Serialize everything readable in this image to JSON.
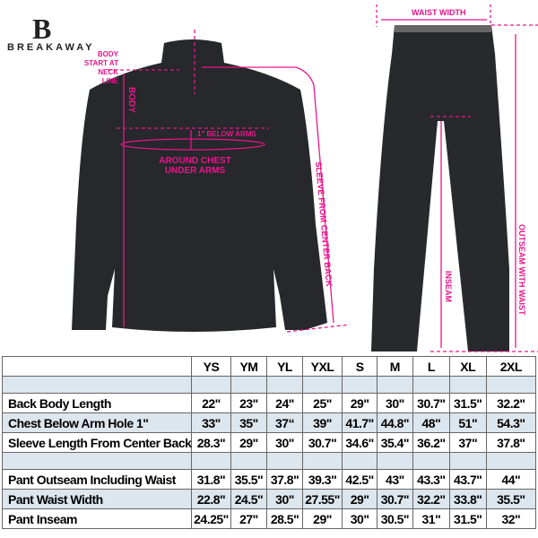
{
  "brand": {
    "logo_letter": "B",
    "name": "BREAKAWAY"
  },
  "colors": {
    "annotation": "#e8168b",
    "garment": "#26282b",
    "row_tint": "#dce6ee"
  },
  "annotations": {
    "body_start": [
      "BODY",
      "START AT",
      "NECK LINE"
    ],
    "body": "BODY",
    "below_arms": "1\" BELOW ARMS",
    "chest": [
      "AROUND CHEST",
      "UNDER ARMS"
    ],
    "sleeve": "SLEEVE FROM CENTER BACK",
    "waist_width": "WAIST WIDTH",
    "inseam": "INSEAM",
    "outseam": "OUTSEAM WITH WAIST"
  },
  "table": {
    "sizes": [
      "YS",
      "YM",
      "YL",
      "YXL",
      "S",
      "M",
      "L",
      "XL",
      "2XL"
    ],
    "jacket_rows": [
      {
        "label": "Back Body Length",
        "values": [
          "22\"",
          "23\"",
          "24\"",
          "25\"",
          "29\"",
          "30\"",
          "30.7\"",
          "31.5\"",
          "32.2\""
        ]
      },
      {
        "label": "Chest Below Arm Hole 1\"",
        "values": [
          "33\"",
          "35\"",
          "37“",
          "39\"",
          "41.7\"",
          "44.8\"",
          "48\"",
          "51\"",
          "54.3\""
        ]
      },
      {
        "label": "Sleeve Length From Center Back",
        "values": [
          "28.3\"",
          "29\"",
          "30\"",
          "30.7\"",
          "34.6\"",
          "35.4\"",
          "36.2\"",
          "37\"",
          "37.8\""
        ]
      }
    ],
    "pant_rows": [
      {
        "label": "Pant Outseam Including Waist",
        "values": [
          "31.8\"",
          "35.5\"",
          "37.8\"",
          "39.3\"",
          "42.5\"",
          "43\"",
          "43.3\"",
          "43.7\"",
          "44\""
        ]
      },
      {
        "label": "Pant Waist Width",
        "values": [
          "22.8\"",
          "24.5\"",
          "30\"",
          "27.55\"",
          "29\"",
          "30.7\"",
          "32.2\"",
          "33.8\"",
          "35.5\""
        ]
      },
      {
        "label": "Pant Inseam",
        "values": [
          "24.25\"",
          "27\"",
          "28.5\"",
          "29\"",
          "30\"",
          "30.5\"",
          "31\"",
          "31.5\"",
          "32\""
        ]
      }
    ]
  }
}
